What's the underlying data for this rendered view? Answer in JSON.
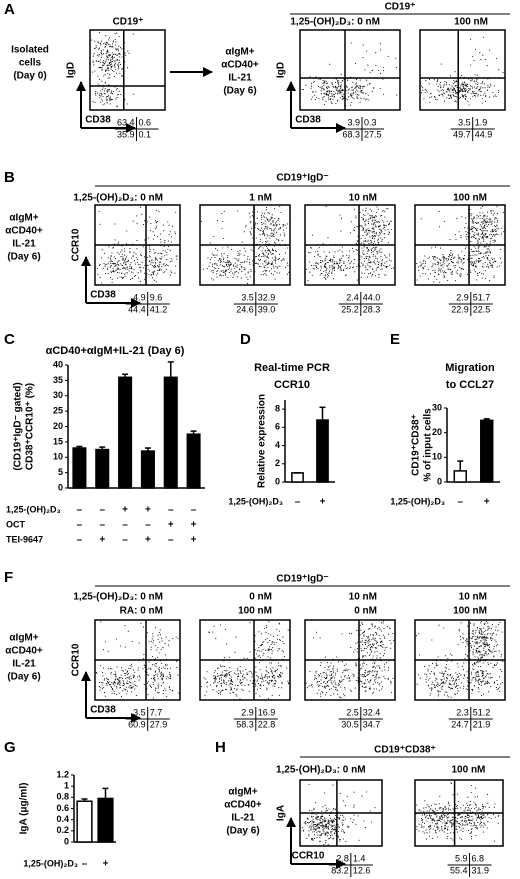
{
  "panel_A": {
    "letter": "A",
    "day0": {
      "title": "CD19⁺",
      "side_label": [
        "Isolated",
        "cells",
        "(Day 0)"
      ],
      "y_axis": "IgD",
      "x_axis": "CD38",
      "plots": [
        {
          "header": [],
          "quadrants": [
            "63.4",
            "0.6",
            "35.9",
            "0.1"
          ]
        }
      ]
    },
    "day6": {
      "group_title": "CD19⁺",
      "side_label": [
        "αIgM+",
        "αCD40+",
        "IL-21",
        "(Day 6)"
      ],
      "y_axis": "IgD",
      "x_axis": "CD38",
      "plots": [
        {
          "header": [
            "1,25-(OH)₂D₃: 0 nM"
          ],
          "quadrants": [
            "3.9",
            "0.3",
            "68.3",
            "27.5"
          ]
        },
        {
          "header": [
            "100 nM"
          ],
          "quadrants": [
            "3.5",
            "1.9",
            "49.7",
            "44.9"
          ]
        }
      ]
    }
  },
  "panel_B": {
    "letter": "B",
    "group_title": "CD19⁺IgD⁻",
    "side_label": [
      "αIgM+",
      "αCD40+",
      "IL-21",
      "(Day 6)"
    ],
    "y_axis": "CCR10",
    "x_axis": "CD38",
    "plots": [
      {
        "header": [
          "1,25-(OH)₂D₃: 0 nM"
        ],
        "quadrants": [
          "4.9",
          "9.6",
          "44.4",
          "41.2"
        ]
      },
      {
        "header": [
          "1 nM"
        ],
        "quadrants": [
          "3.5",
          "32.9",
          "24.6",
          "39.0"
        ]
      },
      {
        "header": [
          "10 nM"
        ],
        "quadrants": [
          "2.4",
          "44.0",
          "25.2",
          "28.3"
        ]
      },
      {
        "header": [
          "100 nM"
        ],
        "quadrants": [
          "2.9",
          "51.7",
          "22.9",
          "22.5"
        ]
      }
    ]
  },
  "panel_F": {
    "letter": "F",
    "group_title": "CD19⁺IgD⁻",
    "side_label": [
      "αIgM+",
      "αCD40+",
      "IL-21",
      "(Day 6)"
    ],
    "y_axis": "CCR10",
    "x_axis": "CD38",
    "plots": [
      {
        "header": [
          "1,25-(OH)₂D₃: 0 nM",
          "RA: 0 nM"
        ],
        "quadrants": [
          "3.5",
          "7.7",
          "60.9",
          "27.9"
        ]
      },
      {
        "header": [
          "0 nM",
          "100 nM"
        ],
        "quadrants": [
          "2.9",
          "16.9",
          "58.3",
          "22.8"
        ]
      },
      {
        "header": [
          "10 nM",
          "0 nM"
        ],
        "quadrants": [
          "2.5",
          "32.4",
          "30.5",
          "34.7"
        ]
      },
      {
        "header": [
          "10 nM",
          "100 nM"
        ],
        "quadrants": [
          "2.3",
          "51.2",
          "24.7",
          "21.9"
        ]
      }
    ]
  },
  "panel_H": {
    "letter": "H",
    "group_title": "CD19⁺CD38⁺",
    "side_label": [
      "αIgM+",
      "αCD40+",
      "IL-21",
      "(Day 6)"
    ],
    "y_axis": "IgA",
    "x_axis": "CCR10",
    "plots": [
      {
        "header": [
          "1,25-(OH)₂D₃: 0 nM"
        ],
        "quadrants": [
          "2.8",
          "1.4",
          "83.2",
          "12.6"
        ]
      },
      {
        "header": [
          "100 nM"
        ],
        "quadrants": [
          "5.9",
          "6.8",
          "55.4",
          "31.9"
        ]
      }
    ]
  },
  "chart_data": [
    {
      "type": "bar",
      "letter": "C",
      "title": [
        "αCD40+αIgM+IL-21 (Day 6)"
      ],
      "y_label": [
        "(CD19⁺IgD⁻ gated)",
        "CD38⁺CCR10⁺ (%)"
      ],
      "values": [
        13,
        12.5,
        36,
        12,
        36,
        17.5
      ],
      "errors": [
        0.5,
        0.8,
        1,
        1,
        5,
        1
      ],
      "colors": [
        "#000000",
        "#000000",
        "#000000",
        "#000000",
        "#000000",
        "#000000"
      ],
      "ylim": [
        0,
        40
      ],
      "yticks": [
        0,
        5,
        10,
        15,
        20,
        25,
        30,
        35,
        40
      ],
      "conditions": [
        {
          "label": "1,25-(OH)₂D₃",
          "signs": [
            "–",
            "–",
            "+",
            "+",
            "–",
            "–"
          ]
        },
        {
          "label": "OCT",
          "signs": [
            "–",
            "–",
            "–",
            "–",
            "+",
            "+"
          ]
        },
        {
          "label": "TEI-9647",
          "signs": [
            "–",
            "+",
            "–",
            "+",
            "–",
            "+"
          ]
        }
      ]
    },
    {
      "type": "bar",
      "letter": "D",
      "title": [
        "Real-time PCR",
        "CCR10"
      ],
      "y_label": [
        "Relative expression"
      ],
      "values": [
        1,
        6.8
      ],
      "errors": [
        0,
        1.4
      ],
      "colors": [
        "#ffffff",
        "#000000"
      ],
      "ylim": [
        0,
        9
      ],
      "yticks": [
        0,
        2,
        4,
        6,
        8
      ],
      "conditions": [
        {
          "label": "1,25-(OH)₂D₃",
          "signs": [
            "–",
            "+"
          ]
        }
      ]
    },
    {
      "type": "bar",
      "letter": "E",
      "title": [
        "Migration",
        "to CCL27"
      ],
      "y_label": [
        "CD19⁺CD38⁺",
        "% of input cells"
      ],
      "values": [
        4.5,
        25
      ],
      "errors": [
        4,
        0.6
      ],
      "colors": [
        "#ffffff",
        "#000000"
      ],
      "ylim": [
        0,
        30
      ],
      "yticks": [
        0,
        10,
        20,
        30
      ],
      "conditions": [
        {
          "label": "1,25-(OH)₂D₃",
          "signs": [
            "–",
            "+"
          ]
        }
      ]
    },
    {
      "type": "bar",
      "letter": "G",
      "title": [],
      "y_label": [
        "IgA (μg/ml)"
      ],
      "values": [
        0.73,
        0.78
      ],
      "errors": [
        0.04,
        0.18
      ],
      "colors": [
        "#ffffff",
        "#000000"
      ],
      "ylim": [
        0,
        1.2
      ],
      "yticks": [
        0,
        0.2,
        0.4,
        0.6,
        0.8,
        1,
        1.2
      ],
      "conditions": [
        {
          "label": "1,25-(OH)₂D₃",
          "signs": [
            "–",
            "+"
          ]
        }
      ]
    }
  ]
}
